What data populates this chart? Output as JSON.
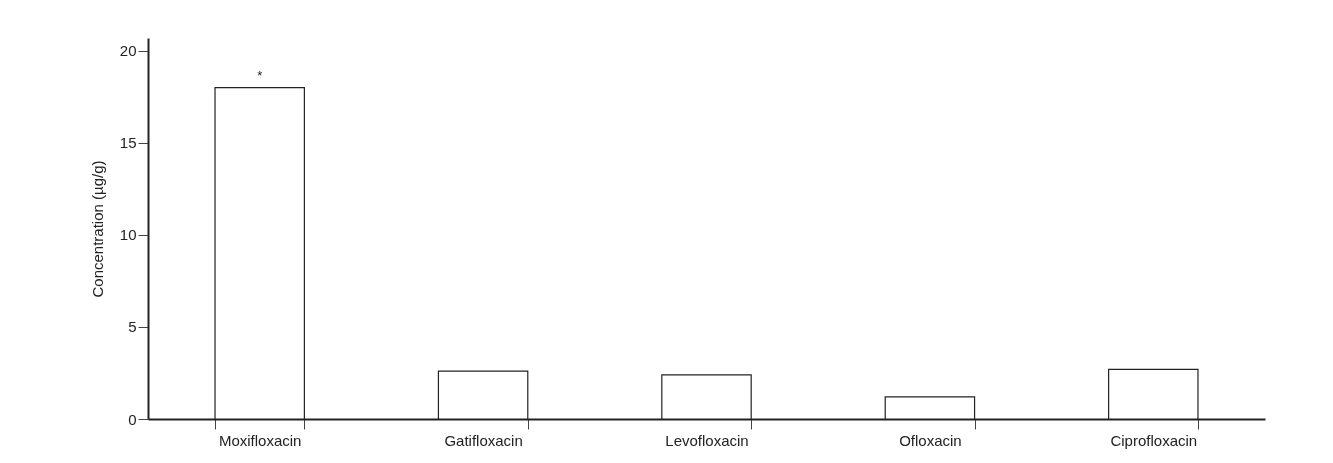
{
  "chart_data": {
    "type": "bar",
    "ylabel": "Concentration (µg/g)",
    "categories": [
      "Moxifloxacin",
      "Gatifloxacin",
      "Levofloxacin",
      "Ofloxacin",
      "Ciprofloxacin"
    ],
    "values": [
      18.0,
      2.6,
      2.4,
      1.2,
      2.7
    ],
    "color": "#ffffff",
    "ylim": [
      0,
      20.7
    ],
    "yticks": [
      0,
      5,
      10,
      15,
      20
    ],
    "annotations": [
      {
        "text": "*",
        "x": "Moxifloxacin",
        "y": 18.0
      }
    ]
  }
}
